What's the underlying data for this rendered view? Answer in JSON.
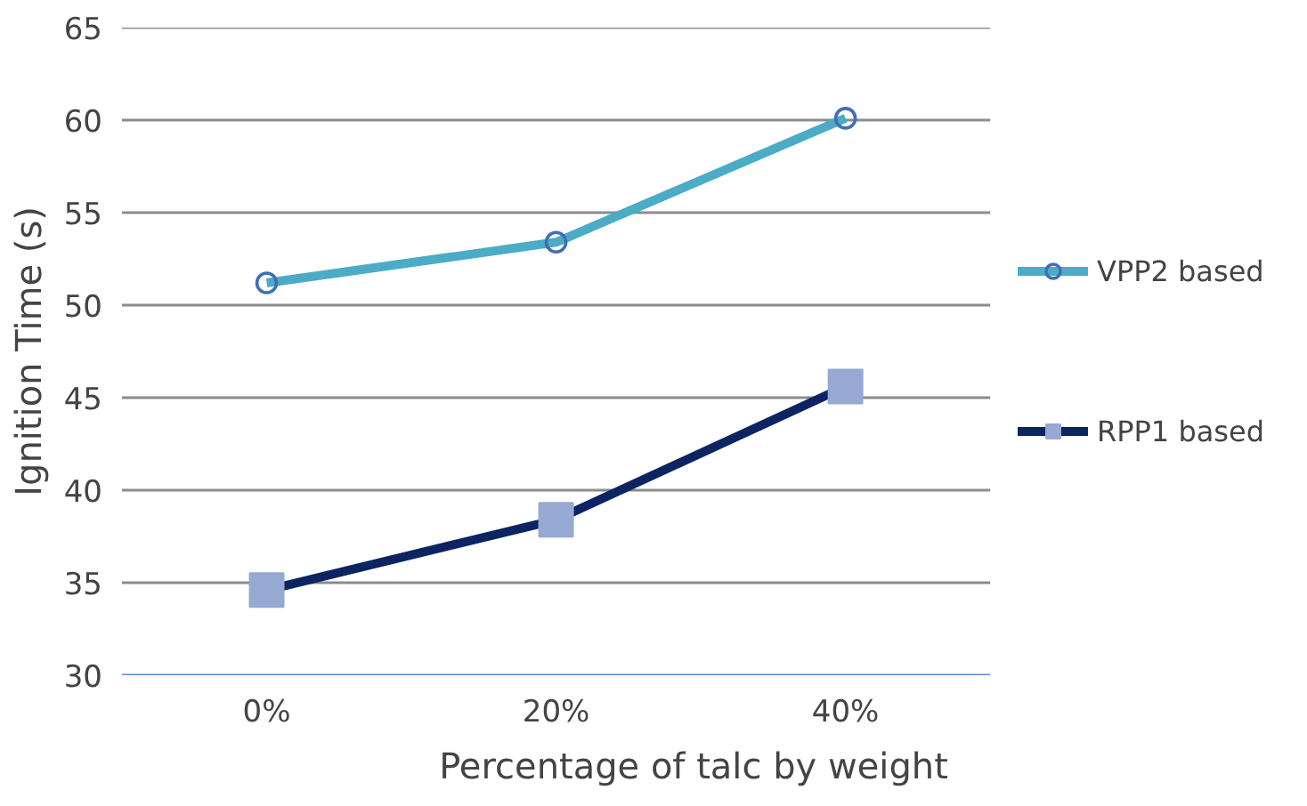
{
  "chart_data": {
    "type": "line",
    "xlabel": "Percentage of talc by weight",
    "ylabel": "Ignition Time (s)",
    "categories": [
      "0%",
      "20%",
      "40%"
    ],
    "series": [
      {
        "name": "VPP2 based",
        "color": "#4bacc6",
        "marker": "circle",
        "colors": [
          "#3f6fb5",
          "#3f6fb5",
          "#3f6fb5"
        ],
        "values": [
          51.2,
          53.4,
          60.1
        ]
      },
      {
        "name": "RPP1 based",
        "color": "#0c2461",
        "marker": "square",
        "colors": [
          "#95a9d3",
          "#95a9d3",
          "#95a9d3"
        ],
        "values": [
          34.6,
          38.4,
          45.6
        ]
      }
    ],
    "ylim": [
      30,
      65
    ],
    "yticks": [
      30,
      35,
      40,
      45,
      50,
      55,
      60,
      65
    ],
    "grid": "y",
    "legend": "right"
  }
}
